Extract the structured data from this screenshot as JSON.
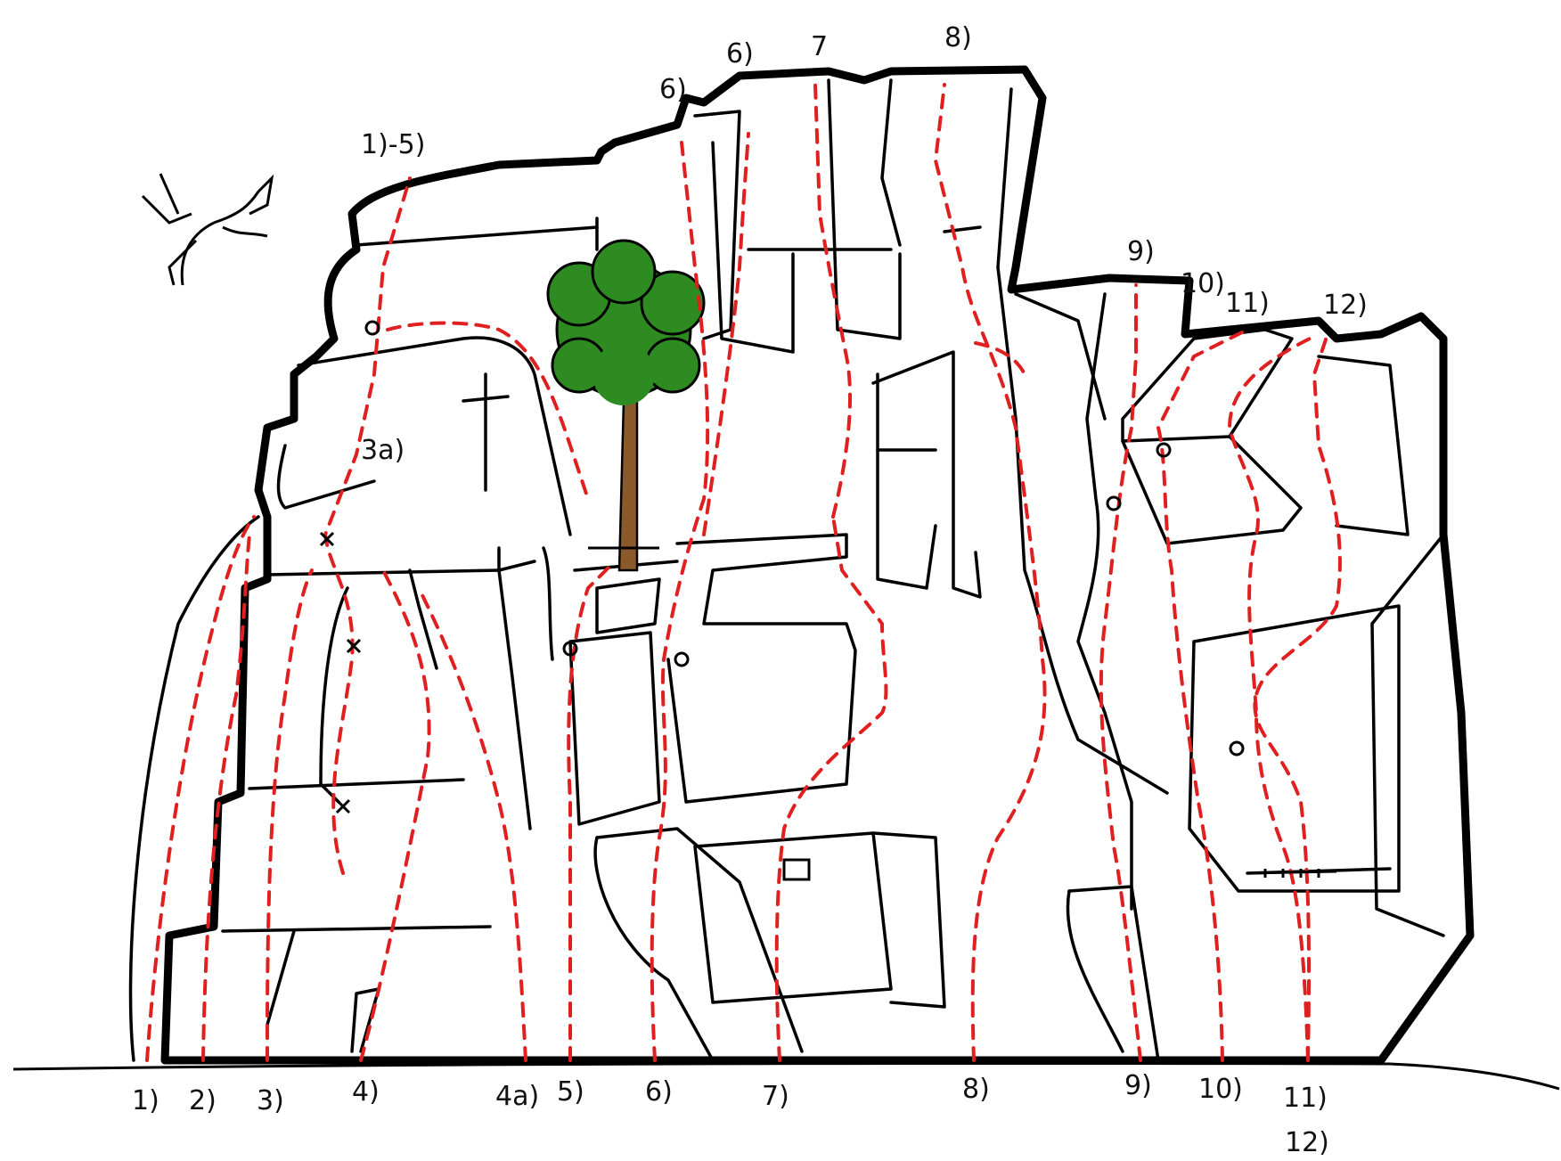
{
  "labels": {
    "top_1_5": "1)-5)",
    "top_6a": "6)",
    "top_6b": "6)",
    "top_7": "7",
    "top_8": "8)",
    "top_9": "9)",
    "top_10": "10)",
    "top_11": "11)",
    "top_12": "12)",
    "mid_3a": "3a)",
    "b1": "1)",
    "b2": "2)",
    "b3": "3)",
    "b4": "4)",
    "b4a": "4a)",
    "b5": "5)",
    "b6": "6)",
    "b7": "7)",
    "b8": "8)",
    "b9": "9)",
    "b10": "10)",
    "b11": "11)",
    "b12": "12)"
  },
  "colors": {
    "route": "#e02020",
    "rock_outline": "#000000",
    "tree_foliage": "#2e8b22",
    "tree_trunk": "#8b5a2b",
    "background": "#ffffff"
  },
  "icons": [
    "bolt-x-marker",
    "ring-anchor-marker",
    "tree-icon",
    "bush-icon"
  ]
}
